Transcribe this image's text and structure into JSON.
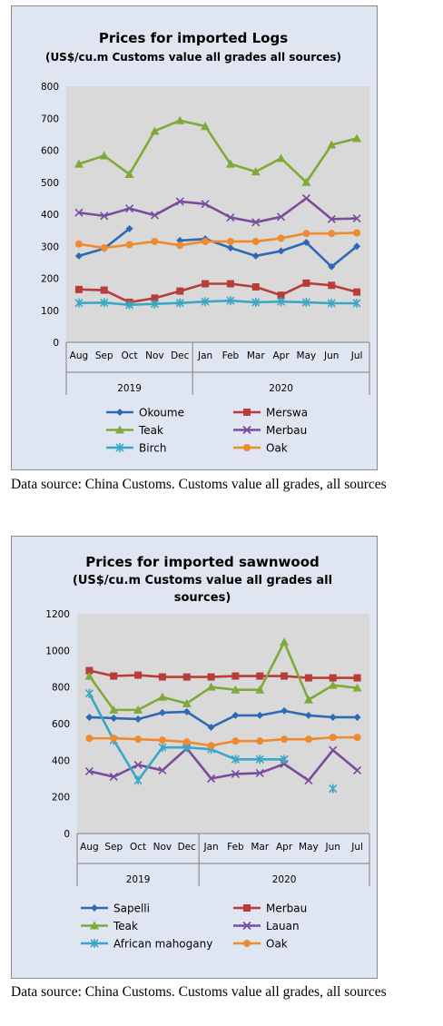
{
  "charts": [
    {
      "title": "Prices for imported Logs",
      "subtitle_lines": [
        "(US$/cu.m Customs value all grades all sources)"
      ],
      "caption": "Data source: China Customs. Customs value all grades, all sources",
      "chart_data": {
        "type": "line",
        "title": "Prices for imported Logs",
        "subtitle": "(US$/cu.m Customs value all grades all sources)",
        "categories": [
          "Aug",
          "Sep",
          "Oct",
          "Nov",
          "Dec",
          "Jan",
          "Feb",
          "Mar",
          "Apr",
          "May",
          "Jun",
          "Jul"
        ],
        "year_groups": [
          {
            "label": "2019",
            "start": 0,
            "end": 4
          },
          {
            "label": "2020",
            "start": 5,
            "end": 11
          }
        ],
        "ylim": [
          0,
          800
        ],
        "yticks": [
          0,
          100,
          200,
          300,
          400,
          500,
          600,
          700,
          800
        ],
        "grid": false,
        "legend_position": "bottom",
        "series": [
          {
            "name": "Okoume",
            "color": "#2e6ab3",
            "marker": "diamond",
            "values": [
              270,
              293,
              355,
              null,
              318,
              323,
              295,
              270,
              285,
              312,
              236,
              300
            ]
          },
          {
            "name": "Merswa",
            "color": "#b83c3a",
            "marker": "square",
            "values": [
              165,
              163,
              125,
              138,
              160,
              183,
              183,
              173,
              147,
              185,
              178,
              157
            ]
          },
          {
            "name": "Teak",
            "color": "#7faa3a",
            "marker": "triangle",
            "values": [
              557,
              583,
              525,
              660,
              693,
              675,
              557,
              533,
              575,
              500,
              617,
              637
            ]
          },
          {
            "name": "Merbau",
            "color": "#7a4c9c",
            "marker": "x",
            "values": [
              405,
              395,
              418,
              397,
              440,
              432,
              390,
              375,
              392,
              450,
              385,
              387
            ]
          },
          {
            "name": "Birch",
            "color": "#3aa7c4",
            "marker": "star",
            "values": [
              123,
              124,
              117,
              120,
              123,
              127,
              130,
              125,
              127,
              125,
              122,
              122
            ]
          },
          {
            "name": "Oak",
            "color": "#ef8a2f",
            "marker": "circle",
            "values": [
              307,
              295,
              305,
              315,
              303,
              315,
              315,
              315,
              325,
              340,
              340,
              342
            ]
          }
        ]
      }
    },
    {
      "title": "Prices for imported sawnwood",
      "subtitle_lines": [
        "(US$/cu.m Customs value all grades all",
        "sources)"
      ],
      "caption": "Data source: China Customs. Customs value all grades, all sources",
      "chart_data": {
        "type": "line",
        "title": "Prices for imported sawnwood",
        "subtitle": "(US$/cu.m Customs value all grades all sources)",
        "categories": [
          "Aug",
          "Sep",
          "Oct",
          "Nov",
          "Dec",
          "Jan",
          "Feb",
          "Mar",
          "Apr",
          "May",
          "Jun",
          "Jul"
        ],
        "year_groups": [
          {
            "label": "2019",
            "start": 0,
            "end": 4
          },
          {
            "label": "2020",
            "start": 5,
            "end": 11
          }
        ],
        "ylim": [
          0,
          1200
        ],
        "yticks": [
          0,
          200,
          400,
          600,
          800,
          1000,
          1200
        ],
        "grid": false,
        "legend_position": "bottom",
        "series": [
          {
            "name": "Sapelli",
            "color": "#2e6ab3",
            "marker": "diamond",
            "values": [
              635,
              630,
              625,
              660,
              665,
              580,
              645,
              645,
              670,
              645,
              635,
              635
            ]
          },
          {
            "name": "Merbau",
            "color": "#b83c3a",
            "marker": "square",
            "values": [
              890,
              860,
              865,
              855,
              855,
              855,
              860,
              860,
              860,
              850,
              850,
              850
            ]
          },
          {
            "name": "Teak",
            "color": "#7faa3a",
            "marker": "triangle",
            "values": [
              860,
              675,
              675,
              745,
              710,
              800,
              785,
              785,
              1045,
              730,
              810,
              795
            ]
          },
          {
            "name": "Lauan",
            "color": "#7a4c9c",
            "marker": "x",
            "values": [
              340,
              310,
              375,
              345,
              465,
              300,
              325,
              330,
              380,
              290,
              455,
              345
            ]
          },
          {
            "name": "African mahogany",
            "color": "#3aa7c4",
            "marker": "star",
            "values": [
              765,
              510,
              290,
              470,
              470,
              460,
              405,
              405,
              405,
              null,
              245,
              null
            ]
          },
          {
            "name": "Oak",
            "color": "#ef8a2f",
            "marker": "circle",
            "values": [
              520,
              520,
              515,
              510,
              500,
              480,
              505,
              505,
              515,
              515,
              525,
              525
            ]
          }
        ]
      }
    }
  ]
}
